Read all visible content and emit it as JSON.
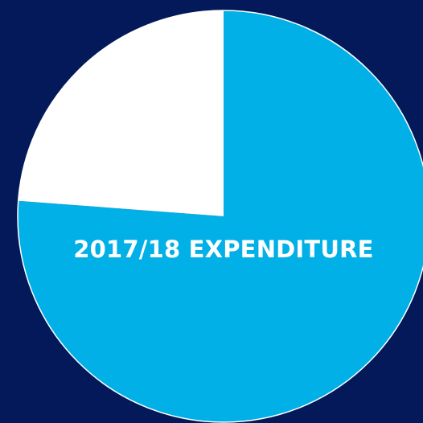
{
  "chart_data": {
    "type": "pie",
    "title": "2017/18 EXPENDITURE",
    "slices": [
      {
        "label": "",
        "value": 76.2,
        "color": "#00b0e6"
      },
      {
        "label": "",
        "value": 23.8,
        "color": "#ffffff"
      }
    ],
    "start_angle_deg": 0,
    "direction": "clockwise",
    "outline_color": "#ffffff"
  },
  "colors": {
    "background": "#04195a",
    "title": "#ffffff"
  }
}
